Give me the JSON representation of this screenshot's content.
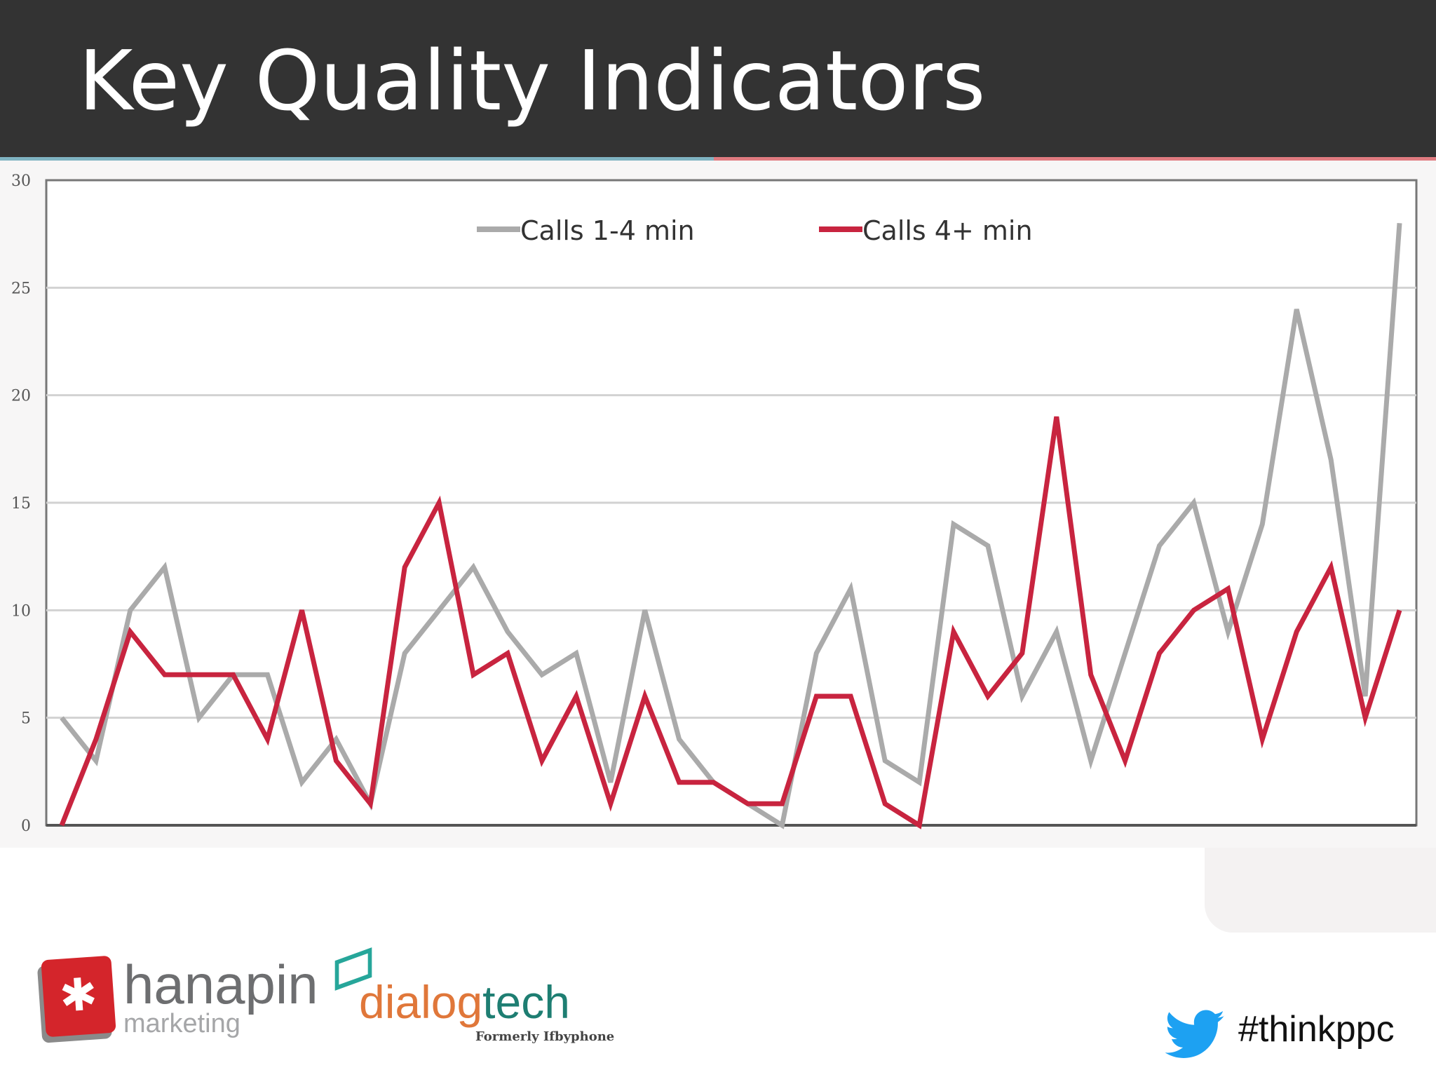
{
  "header": {
    "title": "Key Quality Indicators"
  },
  "chart_data": {
    "type": "line",
    "x": [
      1,
      2,
      3,
      4,
      5,
      6,
      7,
      8,
      9,
      10,
      11,
      12,
      13,
      14,
      15,
      16,
      17,
      18,
      19,
      20,
      21,
      22,
      23,
      24,
      25,
      26,
      27,
      28,
      29,
      30,
      31,
      32,
      33,
      34,
      35,
      36,
      37,
      38,
      39,
      40
    ],
    "series": [
      {
        "name": "Calls 1-4 min",
        "color": "#aaaaaa",
        "values": [
          5,
          3,
          10,
          12,
          5,
          7,
          7,
          2,
          4,
          1,
          8,
          10,
          12,
          9,
          7,
          8,
          2,
          10,
          4,
          2,
          1,
          0,
          8,
          11,
          3,
          2,
          14,
          13,
          6,
          9,
          3,
          8,
          13,
          15,
          9,
          14,
          24,
          17,
          6,
          28
        ]
      },
      {
        "name": "Calls 4+ min",
        "color": "#c8243f",
        "values": [
          0,
          4,
          9,
          7,
          7,
          7,
          4,
          10,
          3,
          1,
          12,
          15,
          7,
          8,
          3,
          6,
          1,
          6,
          2,
          2,
          1,
          1,
          6,
          6,
          1,
          0,
          9,
          6,
          8,
          19,
          7,
          3,
          8,
          10,
          11,
          4,
          9,
          12,
          5,
          10
        ]
      }
    ],
    "y_ticks": [
      "0",
      "5",
      "10",
      "15",
      "20",
      "25",
      "30"
    ],
    "ylim": [
      0,
      30
    ],
    "grid": true,
    "legend": "top-center"
  },
  "footer": {
    "hanapin_name": "hanapin",
    "hanapin_sub": "marketing",
    "dialog_a": "dialog",
    "dialog_b": "tech",
    "dialog_sub": "Formerly Ifbyphone",
    "hashtag": "#thinkppc",
    "hanapin_icon": "asterisk-icon",
    "twitter_icon": "twitter-bird-icon"
  }
}
